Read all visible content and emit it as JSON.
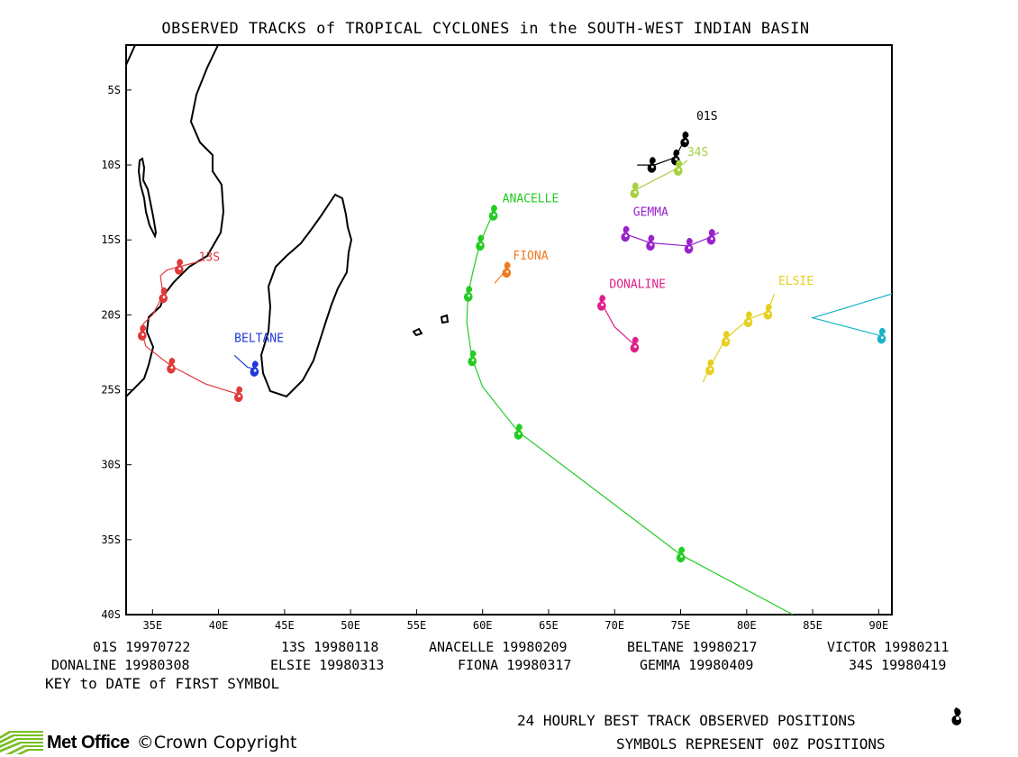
{
  "title": "OBSERVED TRACKS of TROPICAL CYCLONES in the SOUTH-WEST INDIAN BASIN",
  "map": {
    "lon_range": [
      33,
      91
    ],
    "lat_range": [
      -40,
      -2
    ],
    "lon_ticks": [
      35,
      40,
      45,
      50,
      55,
      60,
      65,
      70,
      75,
      80,
      85,
      90
    ],
    "lon_tick_labels": [
      "35E",
      "40E",
      "45E",
      "50E",
      "55E",
      "60E",
      "65E",
      "70E",
      "75E",
      "80E",
      "85E",
      "90E"
    ],
    "lat_ticks": [
      -5,
      -10,
      -15,
      -20,
      -25,
      -30,
      -35,
      -40
    ],
    "lat_tick_labels": [
      "5S",
      "10S",
      "15S",
      "20S",
      "25S",
      "30S",
      "35S",
      "40S"
    ]
  },
  "tracks": [
    {
      "name": "01S",
      "label": "01S",
      "color": "#000000",
      "points": [
        [
          75.3,
          -8.3
        ],
        [
          74.6,
          -9.5
        ],
        [
          73.0,
          -10.0
        ],
        [
          71.7,
          -10.0
        ]
      ],
      "symbols": [
        [
          75.3,
          -8.3
        ],
        [
          74.6,
          -9.5
        ],
        [
          72.8,
          -10.0
        ]
      ],
      "label_pos": [
        76.2,
        -7.0
      ]
    },
    {
      "name": "34S",
      "label": "34S",
      "color": "#a8d040",
      "points": [
        [
          75.5,
          -9.7
        ],
        [
          74.8,
          -10.2
        ],
        [
          71.5,
          -11.7
        ]
      ],
      "symbols": [
        [
          74.8,
          -10.2
        ],
        [
          71.5,
          -11.7
        ]
      ],
      "label_pos": [
        75.5,
        -9.4
      ]
    },
    {
      "name": "ANACELLE",
      "label": "ANACELLE",
      "color": "#22cc22",
      "points": [
        [
          61.0,
          -13.0
        ],
        [
          60.8,
          -13.2
        ],
        [
          59.8,
          -15.2
        ],
        [
          59.3,
          -17.0
        ],
        [
          58.9,
          -18.6
        ],
        [
          58.8,
          -20.5
        ],
        [
          59.2,
          -22.9
        ],
        [
          60.0,
          -24.8
        ],
        [
          62.7,
          -27.8
        ],
        [
          75.0,
          -36.0
        ],
        [
          83.5,
          -40.0
        ]
      ],
      "symbols": [
        [
          60.8,
          -13.2
        ],
        [
          59.8,
          -15.2
        ],
        [
          58.9,
          -18.6
        ],
        [
          59.2,
          -22.9
        ],
        [
          62.7,
          -27.8
        ],
        [
          75.0,
          -36.0
        ]
      ],
      "label_pos": [
        61.5,
        -12.5
      ]
    },
    {
      "name": "FIONA",
      "label": "FIONA",
      "color": "#f07a20",
      "points": [
        [
          60.9,
          -17.9
        ],
        [
          61.8,
          -17.0
        ]
      ],
      "symbols": [
        [
          61.8,
          -17.0
        ]
      ],
      "label_pos": [
        62.3,
        -16.3
      ]
    },
    {
      "name": "GEMMA",
      "label": "GEMMA",
      "color": "#9922cc",
      "points": [
        [
          77.9,
          -14.5
        ],
        [
          77.3,
          -14.8
        ],
        [
          75.6,
          -15.4
        ],
        [
          72.7,
          -15.2
        ],
        [
          70.8,
          -14.6
        ],
        [
          70.7,
          -14.3
        ]
      ],
      "symbols": [
        [
          77.3,
          -14.8
        ],
        [
          75.6,
          -15.4
        ],
        [
          72.7,
          -15.2
        ],
        [
          70.8,
          -14.6
        ]
      ],
      "label_pos": [
        71.4,
        -13.4
      ]
    },
    {
      "name": "DONALINE",
      "label": "DONALINE",
      "color": "#e0208a",
      "points": [
        [
          69.0,
          -19.2
        ],
        [
          70.0,
          -20.8
        ],
        [
          71.5,
          -22.0
        ]
      ],
      "symbols": [
        [
          69.0,
          -19.2
        ],
        [
          71.5,
          -22.0
        ]
      ],
      "label_pos": [
        69.6,
        -18.2
      ]
    },
    {
      "name": "ELSIE",
      "label": "ELSIE",
      "color": "#e6d020",
      "points": [
        [
          82.1,
          -18.6
        ],
        [
          81.6,
          -19.8
        ],
        [
          80.1,
          -20.3
        ],
        [
          78.4,
          -21.6
        ],
        [
          77.2,
          -23.5
        ],
        [
          76.7,
          -24.5
        ]
      ],
      "symbols": [
        [
          81.6,
          -19.8
        ],
        [
          80.1,
          -20.3
        ],
        [
          78.4,
          -21.6
        ],
        [
          77.2,
          -23.5
        ]
      ],
      "label_pos": [
        82.4,
        -18.0
      ]
    },
    {
      "name": "VICTOR",
      "label": "",
      "color": "#16b4c4",
      "points": [
        [
          91.0,
          -18.6
        ],
        [
          88.0,
          -19.4
        ],
        [
          85.0,
          -20.2
        ],
        [
          90.2,
          -21.4
        ]
      ],
      "symbols": [
        [
          90.2,
          -21.4
        ]
      ],
      "label_pos": null
    },
    {
      "name": "BELTANE",
      "label": "BELTANE",
      "color": "#2238d8",
      "points": [
        [
          41.2,
          -22.7
        ],
        [
          42.2,
          -23.5
        ],
        [
          42.7,
          -23.6
        ]
      ],
      "symbols": [
        [
          42.7,
          -23.6
        ]
      ],
      "label_pos": [
        41.2,
        -21.8
      ]
    },
    {
      "name": "13S",
      "label": "13S",
      "color": "#e03a3a",
      "points": [
        [
          38.7,
          -16.4
        ],
        [
          37.0,
          -16.8
        ],
        [
          36.1,
          -17.0
        ],
        [
          35.6,
          -17.4
        ],
        [
          35.8,
          -18.7
        ],
        [
          35.0,
          -20.0
        ],
        [
          34.3,
          -20.6
        ],
        [
          34.2,
          -21.2
        ],
        [
          34.5,
          -22.1
        ],
        [
          36.4,
          -23.4
        ],
        [
          39.0,
          -24.6
        ],
        [
          41.5,
          -25.3
        ]
      ],
      "symbols": [
        [
          37.0,
          -16.8
        ],
        [
          35.8,
          -18.7
        ],
        [
          34.2,
          -21.2
        ],
        [
          36.4,
          -23.4
        ],
        [
          41.5,
          -25.3
        ]
      ],
      "label_pos": [
        38.5,
        -16.4
      ]
    }
  ],
  "key_entries": [
    {
      "name": "01S",
      "date": "19970722"
    },
    {
      "name": "13S",
      "date": "19980118"
    },
    {
      "name": "ANACELLE",
      "date": "19980209"
    },
    {
      "name": "BELTANE",
      "date": "19980217"
    },
    {
      "name": "VICTOR",
      "date": "19980211"
    },
    {
      "name": "DONALINE",
      "date": "19980308"
    },
    {
      "name": "ELSIE",
      "date": "19980313"
    },
    {
      "name": "FIONA",
      "date": "19980317"
    },
    {
      "name": "GEMMA",
      "date": "19980409"
    },
    {
      "name": "34S",
      "date": "19980419"
    }
  ],
  "key_title": "KEY to DATE of FIRST SYMBOL",
  "footer": {
    "line1": "24 HOURLY BEST TRACK OBSERVED POSITIONS",
    "line2": "SYMBOLS REPRESENT 00Z POSITIONS",
    "symbol_icon": "cyclone-symbol-icon"
  },
  "brand": {
    "name": "Met Office",
    "copyright": "©Crown Copyright",
    "logo_icon": "met-office-stripes-icon",
    "logo_color": "#78be20"
  }
}
